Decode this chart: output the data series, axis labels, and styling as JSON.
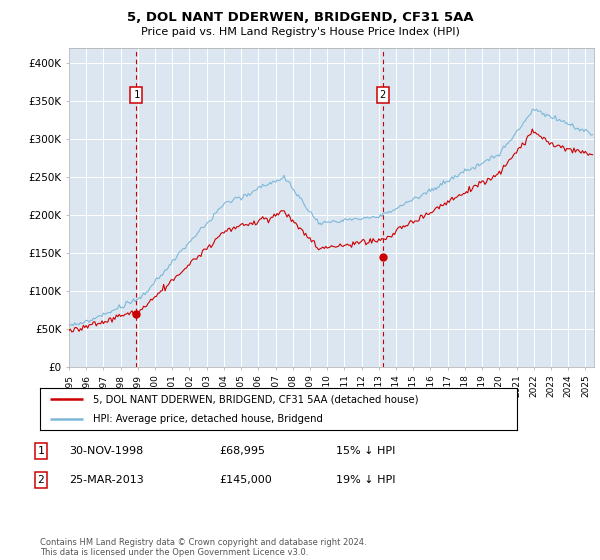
{
  "title": "5, DOL NANT DDERWEN, BRIDGEND, CF31 5AA",
  "subtitle": "Price paid vs. HM Land Registry's House Price Index (HPI)",
  "background_color": "#dce6f1",
  "ylim": [
    0,
    420000
  ],
  "yticks": [
    0,
    50000,
    100000,
    150000,
    200000,
    250000,
    300000,
    350000,
    400000
  ],
  "ytick_labels": [
    "£0",
    "£50K",
    "£100K",
    "£150K",
    "£200K",
    "£250K",
    "£300K",
    "£350K",
    "£400K"
  ],
  "xmin_year": 1995.0,
  "xmax_year": 2025.5,
  "xticks": [
    1995,
    1996,
    1997,
    1998,
    1999,
    2000,
    2001,
    2002,
    2003,
    2004,
    2005,
    2006,
    2007,
    2008,
    2009,
    2010,
    2011,
    2012,
    2013,
    2014,
    2015,
    2016,
    2017,
    2018,
    2019,
    2020,
    2021,
    2022,
    2023,
    2024,
    2025
  ],
  "hpi_color": "#7db8d8",
  "price_color": "#cc0000",
  "marker1_x": 1998.917,
  "marker1_y": 68995,
  "marker2_x": 2013.23,
  "marker2_y": 145000,
  "marker1_label": "1",
  "marker2_label": "2",
  "vline1_x": 1998.917,
  "vline2_x": 2013.23,
  "legend_line1": "5, DOL NANT DDERWEN, BRIDGEND, CF31 5AA (detached house)",
  "legend_line2": "HPI: Average price, detached house, Bridgend",
  "table_row1_num": "1",
  "table_row1_date": "30-NOV-1998",
  "table_row1_price": "£68,995",
  "table_row1_hpi": "15% ↓ HPI",
  "table_row2_num": "2",
  "table_row2_date": "25-MAR-2013",
  "table_row2_price": "£145,000",
  "table_row2_hpi": "19% ↓ HPI",
  "footnote": "Contains HM Land Registry data © Crown copyright and database right 2024.\nThis data is licensed under the Open Government Licence v3.0."
}
